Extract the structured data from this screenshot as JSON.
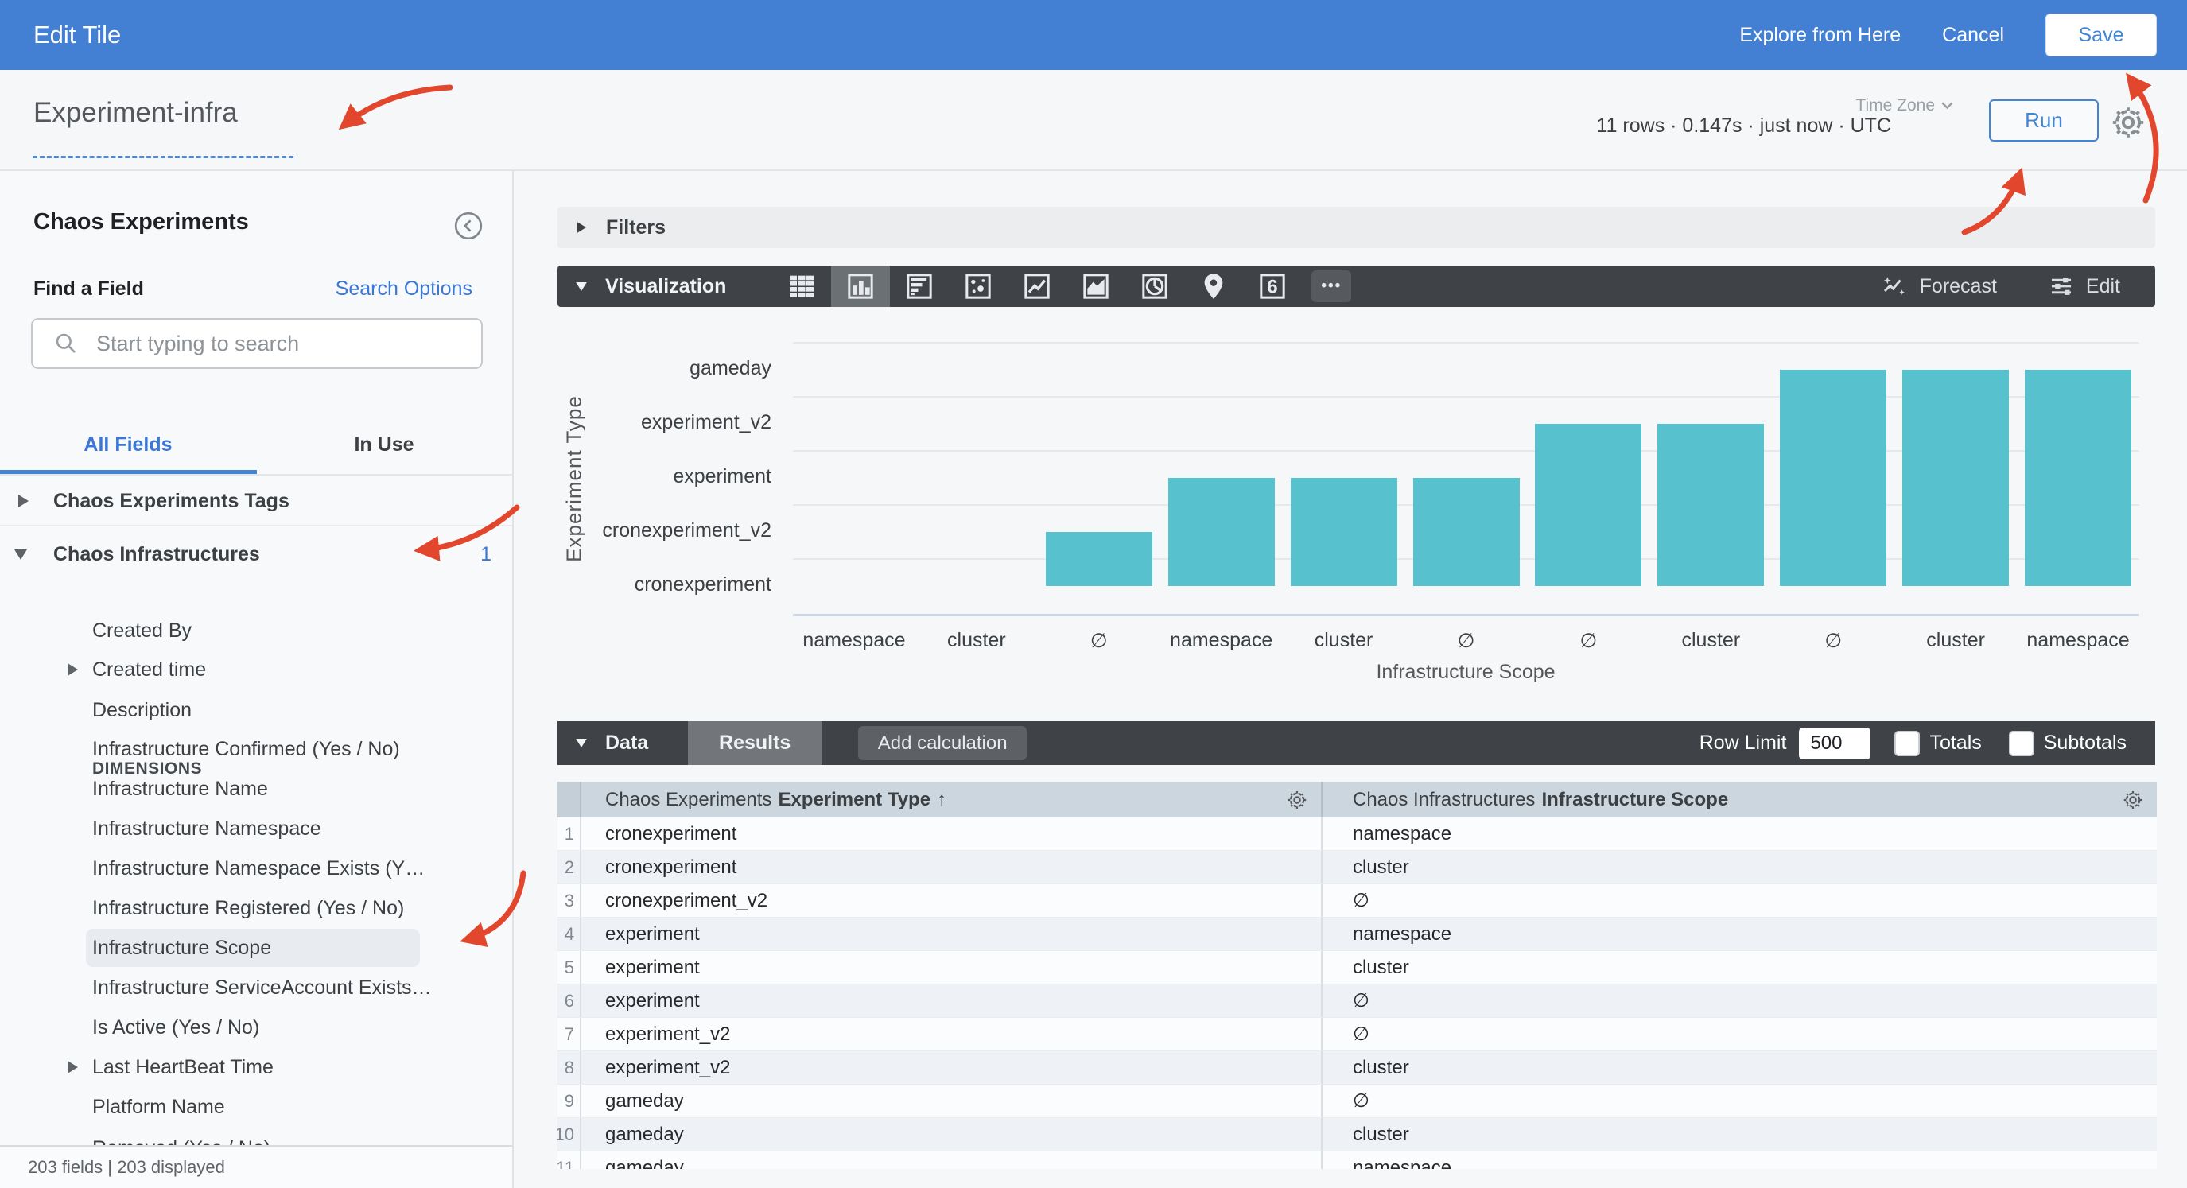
{
  "colors": {
    "app_bar_blue": "#4380d4",
    "accent_blue": "#4285d4",
    "link_blue": "#3a77d6",
    "bar_teal": "#57c1cd",
    "toolbar_dark": "#3f4347",
    "annotation_red": "#e2462c",
    "table_header_bg": "#ccd6de"
  },
  "header": {
    "title": "Edit Tile",
    "explore_from_here": "Explore from Here",
    "cancel": "Cancel",
    "save": "Save"
  },
  "query_bar": {
    "tile_name": "Experiment-infra",
    "stats": "11 rows · 0.147s · just now · UTC",
    "timezone_label": "Time Zone",
    "run": "Run"
  },
  "sidebar": {
    "view_title": "Chaos Experiments",
    "find_a_field": "Find a Field",
    "search_options": "Search Options",
    "search_placeholder": "Start typing to search",
    "tabs": {
      "all_fields": "All Fields",
      "in_use": "In Use"
    },
    "groups": [
      {
        "label": "Chaos Experiments Tags",
        "state": "collapsed"
      },
      {
        "label": "Chaos Infrastructures",
        "state": "expanded",
        "count": "1",
        "section_label": "DIMENSIONS",
        "fields": [
          {
            "label": "Created By"
          },
          {
            "label": "Created time",
            "expandable": true
          },
          {
            "label": "Description"
          },
          {
            "label": "Infrastructure Confirmed (Yes / No)"
          },
          {
            "label": "Infrastructure Name"
          },
          {
            "label": "Infrastructure Namespace"
          },
          {
            "label": "Infrastructure Namespace Exists (Y…"
          },
          {
            "label": "Infrastructure Registered (Yes / No)"
          },
          {
            "label": "Infrastructure Scope",
            "selected": true
          },
          {
            "label": "Infrastructure ServiceAccount Exists…"
          },
          {
            "label": "Is Active (Yes / No)"
          },
          {
            "label": "Last HeartBeat Time",
            "expandable": true
          },
          {
            "label": "Platform Name"
          },
          {
            "label": "Removed (Yes / No)",
            "clipped": true
          }
        ]
      }
    ],
    "footer": "203 fields | 203 displayed"
  },
  "main": {
    "filters": {
      "label": "Filters"
    },
    "visualization": {
      "label": "Visualization",
      "forecast": "Forecast",
      "edit": "Edit",
      "types": [
        {
          "name": "table-chart"
        },
        {
          "name": "column-chart",
          "selected": true
        },
        {
          "name": "bar-chart"
        },
        {
          "name": "scatter-chart"
        },
        {
          "name": "line-chart"
        },
        {
          "name": "area-chart"
        },
        {
          "name": "pie-chart"
        },
        {
          "name": "map-chart"
        },
        {
          "name": "single-value",
          "glyph": "6"
        },
        {
          "name": "more-viz-types",
          "glyph": "•••"
        }
      ]
    },
    "data_section": {
      "label": "Data",
      "results_tab": "Results",
      "add_calculation": "Add calculation",
      "row_limit_label": "Row Limit",
      "row_limit_value": "500",
      "totals_label": "Totals",
      "subtotals_label": "Subtotals"
    },
    "table": {
      "columns": [
        {
          "prefix": "Chaos Experiments",
          "field": "Experiment Type",
          "sort_arrow": "↑"
        },
        {
          "prefix": "Chaos Infrastructures",
          "field": "Infrastructure Scope",
          "sort_arrow": ""
        }
      ],
      "rows": [
        [
          "cronexperiment",
          "namespace"
        ],
        [
          "cronexperiment",
          "cluster"
        ],
        [
          "cronexperiment_v2",
          "∅"
        ],
        [
          "experiment",
          "namespace"
        ],
        [
          "experiment",
          "cluster"
        ],
        [
          "experiment",
          "∅"
        ],
        [
          "experiment_v2",
          "∅"
        ],
        [
          "experiment_v2",
          "cluster"
        ],
        [
          "gameday",
          "∅"
        ],
        [
          "gameday",
          "cluster"
        ],
        [
          "gameday",
          "namespace"
        ]
      ]
    }
  },
  "chart_data": {
    "type": "bar",
    "title": "",
    "xlabel": "Infrastructure Scope",
    "ylabel": "Experiment Type",
    "y_categories": [
      "cronexperiment",
      "cronexperiment_v2",
      "experiment",
      "experiment_v2",
      "gameday"
    ],
    "grid": true,
    "legend": "none",
    "bars": [
      {
        "scope": "namespace",
        "experiment_type": "cronexperiment",
        "level": 0
      },
      {
        "scope": "cluster",
        "experiment_type": "cronexperiment",
        "level": 0
      },
      {
        "scope": "∅",
        "experiment_type": "cronexperiment_v2",
        "level": 1
      },
      {
        "scope": "namespace",
        "experiment_type": "experiment",
        "level": 2
      },
      {
        "scope": "cluster",
        "experiment_type": "experiment",
        "level": 2
      },
      {
        "scope": "∅",
        "experiment_type": "experiment",
        "level": 2
      },
      {
        "scope": "∅",
        "experiment_type": "experiment_v2",
        "level": 3
      },
      {
        "scope": "cluster",
        "experiment_type": "experiment_v2",
        "level": 3
      },
      {
        "scope": "∅",
        "experiment_type": "gameday",
        "level": 4
      },
      {
        "scope": "cluster",
        "experiment_type": "gameday",
        "level": 4
      },
      {
        "scope": "namespace",
        "experiment_type": "gameday",
        "level": 4
      }
    ]
  },
  "annotations": {
    "arrow_targets": [
      "tile-name",
      "run-button",
      "save-button",
      "chaos-infrastructures-group",
      "infrastructure-scope-field"
    ]
  }
}
